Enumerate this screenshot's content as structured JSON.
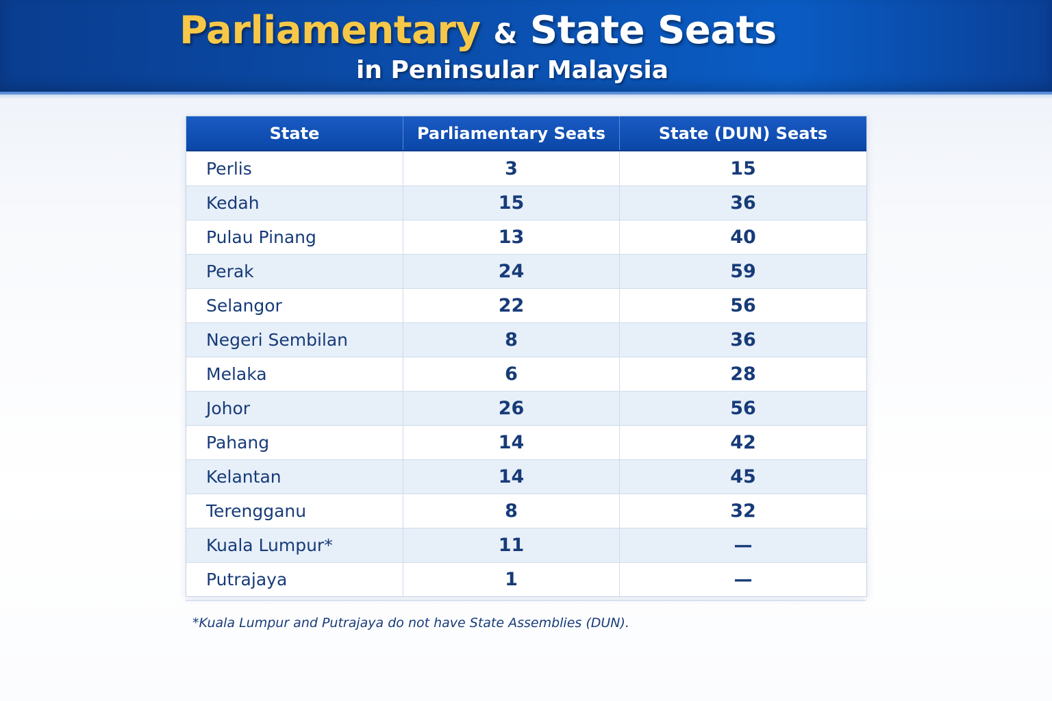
{
  "header": {
    "title_part1": "Parliamentary",
    "title_amp": "&",
    "title_part2": "State Seats",
    "subtitle": "in Peninsular Malaysia"
  },
  "colors": {
    "header_blue": "#0b4fae",
    "title_gold": "#f7c848",
    "text_navy": "#173b78",
    "row_alt": "#e7eff9"
  },
  "table": {
    "columns": [
      "State",
      "Parliamentary Seats",
      "State (DUN) Seats"
    ],
    "rows": [
      {
        "state": "Perlis",
        "parliamentary": "3",
        "dun": "15"
      },
      {
        "state": "Kedah",
        "parliamentary": "15",
        "dun": "36"
      },
      {
        "state": "Pulau Pinang",
        "parliamentary": "13",
        "dun": "40"
      },
      {
        "state": "Perak",
        "parliamentary": "24",
        "dun": "59"
      },
      {
        "state": "Selangor",
        "parliamentary": "22",
        "dun": "56"
      },
      {
        "state": "Negeri Sembilan",
        "parliamentary": "8",
        "dun": "36"
      },
      {
        "state": "Melaka",
        "parliamentary": "6",
        "dun": "28"
      },
      {
        "state": "Johor",
        "parliamentary": "26",
        "dun": "56"
      },
      {
        "state": "Pahang",
        "parliamentary": "14",
        "dun": "42"
      },
      {
        "state": "Kelantan",
        "parliamentary": "14",
        "dun": "45"
      },
      {
        "state": "Terengganu",
        "parliamentary": "8",
        "dun": "32"
      },
      {
        "state": "Kuala Lumpur*",
        "parliamentary": "11",
        "dun": "—"
      },
      {
        "state": "Putrajaya",
        "parliamentary": "1",
        "dun": "—"
      }
    ]
  },
  "footnote": "*Kuala Lumpur and Putrajaya do not have State Assemblies (DUN)."
}
